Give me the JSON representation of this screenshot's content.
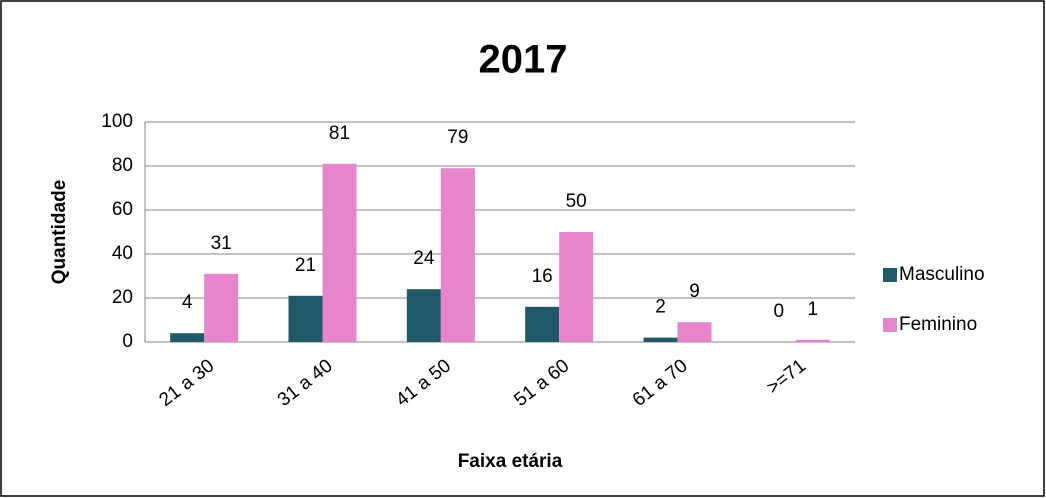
{
  "chart_data": {
    "type": "bar",
    "title": "2017",
    "x_label": "Faixa etária",
    "y_label": "Quantidade",
    "categories": [
      "21 a 30",
      "31 a 40",
      "41 a 50",
      "51 a 60",
      "61 a 70",
      ">=71"
    ],
    "series": [
      {
        "name": "Masculino",
        "color": "#215968",
        "values": [
          4,
          21,
          24,
          16,
          2,
          0
        ]
      },
      {
        "name": "Feminino",
        "color": "#e585cc",
        "values": [
          31,
          81,
          79,
          50,
          9,
          1
        ]
      }
    ],
    "ylim": [
      0,
      100
    ],
    "yticks": [
      0,
      20,
      40,
      60,
      80,
      100
    ],
    "grid": true,
    "legend": "right"
  }
}
